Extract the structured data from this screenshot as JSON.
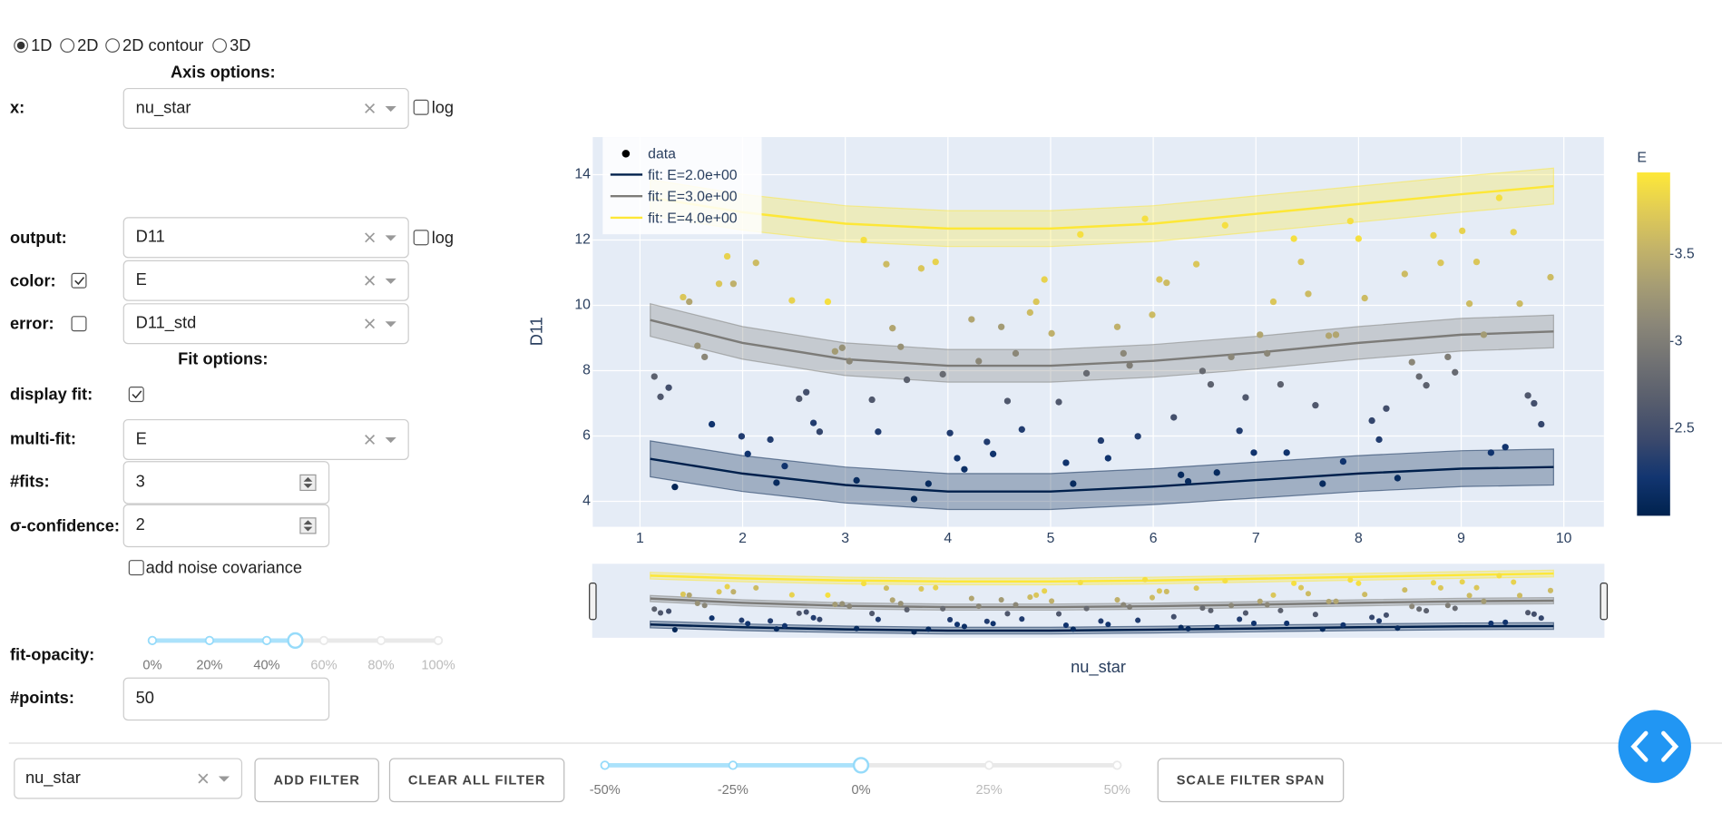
{
  "controls": {
    "modes": [
      "1D",
      "2D",
      "2D contour",
      "3D"
    ],
    "mode_selected": 0,
    "axis_options": "Axis options:",
    "x_label": "x:",
    "x_value": "nu_star",
    "x_log": "log",
    "x_log_checked": false,
    "output_label": "output:",
    "output_value": "D11",
    "output_log": "log",
    "output_log_checked": false,
    "color_label": "color:",
    "color_checked": true,
    "color_value": "E",
    "error_label": "error:",
    "error_checked": false,
    "error_value": "D11_std",
    "fit_options": "Fit options:",
    "display_fit_label": "display fit:",
    "display_fit_checked": true,
    "multi_fit_label": "multi-fit:",
    "multi_fit_value": "E",
    "fits_label": "#fits:",
    "fits_value": 3,
    "confidence_label": "σ-confidence:",
    "confidence_value": 2,
    "noise_label": "add noise covariance",
    "noise_checked": false,
    "opacity_label": "fit-opacity:",
    "opacity_marks": [
      {
        "value": 0,
        "label": "0%"
      },
      {
        "value": 20,
        "label": "20%"
      },
      {
        "value": 40,
        "label": "40%"
      },
      {
        "value": 60,
        "label": "60%"
      },
      {
        "value": 80,
        "label": "80%"
      },
      {
        "value": 100,
        "label": "100%"
      }
    ],
    "opacity_value": 50,
    "points_label": "#points:",
    "points_value": 50
  },
  "filter_bar": {
    "field": "nu_star",
    "add_button": "ADD FILTER",
    "clear_button": "CLEAR ALL FILTER",
    "marks": [
      {
        "value": -50,
        "label": "-50%"
      },
      {
        "value": -25,
        "label": "-25%"
      },
      {
        "value": 0,
        "label": "0%"
      },
      {
        "value": 25,
        "label": "25%"
      },
      {
        "value": 50,
        "label": "50%"
      }
    ],
    "value": 0,
    "scale_button": "SCALE FILTER SPAN"
  },
  "chart_data": {
    "type": "scatter",
    "x_label": "nu_star",
    "y_label": "D11",
    "xlim": [
      0.54,
      10.39
    ],
    "xticks": [
      1,
      2,
      3,
      4,
      5,
      6,
      7,
      8,
      9,
      10
    ],
    "ylim": [
      3.22,
      15.15
    ],
    "yticks": [
      4,
      6,
      8,
      10,
      12,
      14
    ],
    "grid": true,
    "colorbar": {
      "title": "E",
      "range": [
        2.0,
        3.97
      ],
      "ticks": [
        2.5,
        3,
        3.5
      ],
      "colorscale": [
        "#00224e",
        "#123570",
        "#3b496c",
        "#575d6d",
        "#707173",
        "#8a8678",
        "#a59c74",
        "#c3b369",
        "#e1cc55",
        "#fee838"
      ]
    },
    "series": {
      "name": "data",
      "color": "#000000",
      "x": [
        1.14,
        1.2,
        1.28,
        1.34,
        1.42,
        1.48,
        1.56,
        1.63,
        1.7,
        1.77,
        1.85,
        1.91,
        1.99,
        2.05,
        2.13,
        2.27,
        2.33,
        2.41,
        2.48,
        2.55,
        2.62,
        2.69,
        2.75,
        2.83,
        2.9,
        2.97,
        3.04,
        3.11,
        3.18,
        3.26,
        3.32,
        3.4,
        3.46,
        3.54,
        3.6,
        3.67,
        3.74,
        3.81,
        3.88,
        3.95,
        4.02,
        4.09,
        4.16,
        4.23,
        4.3,
        4.38,
        4.44,
        4.52,
        4.58,
        4.66,
        4.72,
        4.8,
        4.86,
        4.94,
        5.01,
        5.08,
        5.15,
        5.22,
        5.29,
        5.35,
        5.49,
        5.56,
        5.65,
        5.71,
        5.77,
        5.85,
        5.92,
        5.99,
        6.06,
        6.13,
        6.2,
        6.27,
        6.34,
        6.42,
        6.48,
        6.56,
        6.62,
        6.7,
        6.76,
        6.84,
        6.9,
        6.98,
        7.04,
        7.11,
        7.17,
        7.24,
        7.3,
        7.37,
        7.44,
        7.51,
        7.58,
        7.65,
        7.71,
        7.78,
        7.85,
        7.92,
        8.0,
        8.06,
        8.13,
        8.2,
        8.27,
        8.38,
        8.45,
        8.52,
        8.59,
        8.66,
        8.73,
        8.8,
        8.87,
        8.94,
        9.01,
        9.08,
        9.15,
        9.22,
        9.29,
        9.37,
        9.43,
        9.51,
        9.57,
        9.65,
        9.71,
        9.78,
        9.87
      ],
      "y": [
        7.82,
        7.2,
        7.48,
        4.44,
        10.25,
        10.11,
        8.76,
        8.42,
        6.36,
        10.66,
        11.5,
        10.66,
        5.99,
        5.45,
        11.3,
        5.89,
        4.57,
        5.08,
        10.15,
        7.14,
        7.34,
        6.4,
        6.13,
        10.11,
        8.59,
        8.7,
        8.29,
        4.64,
        12.0,
        7.11,
        6.13,
        11.26,
        9.3,
        8.73,
        7.72,
        4.07,
        11.13,
        4.54,
        11.33,
        7.89,
        6.09,
        5.32,
        4.98,
        9.57,
        8.29,
        5.82,
        5.45,
        9.34,
        7.07,
        8.53,
        6.2,
        9.78,
        10.11,
        10.79,
        9.14,
        7.04,
        5.18,
        4.54,
        12.17,
        7.92,
        5.86,
        5.32,
        9.34,
        8.53,
        8.16,
        5.99,
        12.65,
        9.71,
        10.79,
        10.69,
        6.57,
        4.81,
        4.61,
        11.26,
        7.99,
        7.58,
        4.88,
        12.45,
        8.42,
        6.16,
        7.18,
        5.49,
        9.1,
        8.53,
        10.11,
        7.58,
        5.49,
        12.04,
        11.33,
        10.35,
        6.94,
        4.54,
        9.07,
        9.1,
        5.22,
        12.58,
        12.04,
        10.22,
        6.47,
        5.89,
        6.84,
        4.71,
        10.96,
        8.26,
        7.82,
        7.55,
        12.14,
        11.3,
        8.42,
        7.95,
        12.28,
        10.05,
        11.33,
        9.1,
        5.49,
        13.29,
        5.66,
        12.24,
        10.05,
        7.24,
        7.0,
        6.36,
        10.86
      ],
      "color_values": [
        2.7,
        2.6,
        2.5,
        2.05,
        3.7,
        3.4,
        3.2,
        3.1,
        2.2,
        3.7,
        3.8,
        3.5,
        2.3,
        2.2,
        3.6,
        2.3,
        2.1,
        2.2,
        3.8,
        2.6,
        2.5,
        2.3,
        2.4,
        3.9,
        3.3,
        3.2,
        3.1,
        2.1,
        3.9,
        2.6,
        2.3,
        3.6,
        3.4,
        3.2,
        2.7,
        2.05,
        3.7,
        2.1,
        3.8,
        2.8,
        2.3,
        2.2,
        2.15,
        3.4,
        3.1,
        2.3,
        2.2,
        3.3,
        2.6,
        3.1,
        2.3,
        3.6,
        3.7,
        3.8,
        3.5,
        2.6,
        2.2,
        2.1,
        3.9,
        2.8,
        2.3,
        2.2,
        3.5,
        3.1,
        3.0,
        2.3,
        3.9,
        3.6,
        3.7,
        3.6,
        2.5,
        2.1,
        2.1,
        3.7,
        2.8,
        2.7,
        2.1,
        3.9,
        3.1,
        2.3,
        2.6,
        2.2,
        3.4,
        3.1,
        3.7,
        2.7,
        2.2,
        3.9,
        3.7,
        3.6,
        2.6,
        2.1,
        3.4,
        3.4,
        2.2,
        3.9,
        3.9,
        3.6,
        2.4,
        2.3,
        2.5,
        2.1,
        3.6,
        3.1,
        2.8,
        2.7,
        3.8,
        3.7,
        3.0,
        2.8,
        3.8,
        3.6,
        3.7,
        3.3,
        2.2,
        3.9,
        2.2,
        3.8,
        3.6,
        2.6,
        2.5,
        2.4,
        3.6
      ]
    },
    "fits": [
      {
        "name": "fit: E=2.0e+00",
        "color": "#00204c",
        "x": [
          1.1,
          2,
          3,
          4,
          5,
          6,
          7,
          8,
          9,
          9.9
        ],
        "y": [
          5.3,
          4.85,
          4.5,
          4.3,
          4.3,
          4.45,
          4.65,
          4.85,
          5.0,
          5.05
        ],
        "lower": [
          4.75,
          4.3,
          3.95,
          3.75,
          3.75,
          3.9,
          4.1,
          4.3,
          4.45,
          4.5
        ],
        "upper": [
          5.85,
          5.4,
          5.05,
          4.85,
          4.85,
          5.0,
          5.2,
          5.4,
          5.55,
          5.6
        ]
      },
      {
        "name": "fit: E=3.0e+00",
        "color": "#7c7b78",
        "x": [
          1.1,
          2,
          3,
          4,
          5,
          6,
          7,
          8,
          9,
          9.9
        ],
        "y": [
          9.55,
          8.85,
          8.35,
          8.15,
          8.15,
          8.3,
          8.55,
          8.85,
          9.1,
          9.2
        ],
        "lower": [
          9.05,
          8.35,
          7.85,
          7.65,
          7.65,
          7.8,
          8.05,
          8.35,
          8.6,
          8.7
        ],
        "upper": [
          10.05,
          9.35,
          8.85,
          8.65,
          8.65,
          8.8,
          9.05,
          9.35,
          9.6,
          9.7
        ]
      },
      {
        "name": "fit: E=4.0e+00",
        "color": "#fde737",
        "x": [
          1.1,
          2,
          3,
          4,
          5,
          6,
          7,
          8,
          9,
          9.9
        ],
        "y": [
          13.3,
          12.85,
          12.5,
          12.35,
          12.35,
          12.5,
          12.8,
          13.1,
          13.4,
          13.65
        ],
        "lower": [
          12.75,
          12.3,
          11.95,
          11.8,
          11.8,
          11.95,
          12.25,
          12.55,
          12.85,
          13.1
        ],
        "upper": [
          13.85,
          13.4,
          13.05,
          12.9,
          12.9,
          13.05,
          13.35,
          13.65,
          13.95,
          14.2
        ]
      }
    ]
  }
}
